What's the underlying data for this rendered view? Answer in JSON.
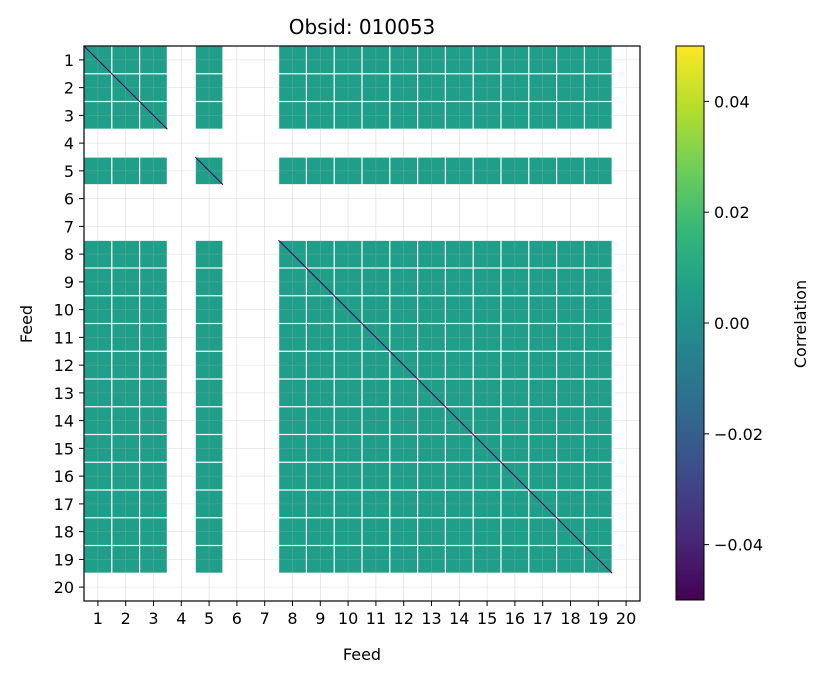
{
  "chart_data": {
    "type": "heatmap",
    "title": "Obsid: 010053",
    "xlabel": "Feed",
    "ylabel": "Feed",
    "feeds": [
      "1",
      "2",
      "3",
      "4",
      "5",
      "6",
      "7",
      "8",
      "9",
      "10",
      "11",
      "12",
      "13",
      "14",
      "15",
      "16",
      "17",
      "18",
      "19",
      "20"
    ],
    "active_feeds": [
      1,
      2,
      3,
      5,
      8,
      9,
      10,
      11,
      12,
      13,
      14,
      15,
      16,
      17,
      18,
      19
    ],
    "dead_feeds": [
      4,
      6,
      7,
      20
    ],
    "cell_value": 0.0,
    "cell_color": "#21918c",
    "diagonal_color": "#440154",
    "grid": true,
    "colorbar": {
      "label": "Correlation",
      "vmin": -0.05,
      "vmax": 0.05,
      "ticks": [
        0.04,
        0.02,
        0.0,
        -0.02,
        -0.04
      ],
      "tick_labels": [
        "0.04",
        "0.02",
        "0.00",
        "−0.02",
        "−0.04"
      ],
      "colormap": [
        "#440154",
        "#482878",
        "#3e4989",
        "#31688e",
        "#26828e",
        "#1f9e89",
        "#35b779",
        "#6ece58",
        "#b5de2b",
        "#fde725"
      ]
    }
  }
}
